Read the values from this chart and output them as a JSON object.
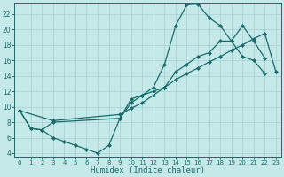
{
  "xlabel": "Humidex (Indice chaleur)",
  "xlim": [
    -0.5,
    23.5
  ],
  "ylim": [
    3.5,
    23.5
  ],
  "xticks": [
    0,
    1,
    2,
    3,
    4,
    5,
    6,
    7,
    8,
    9,
    10,
    11,
    12,
    13,
    14,
    15,
    16,
    17,
    18,
    19,
    20,
    21,
    22,
    23
  ],
  "yticks": [
    4,
    6,
    8,
    10,
    12,
    14,
    16,
    18,
    20,
    22
  ],
  "bg_color": "#c5e8e8",
  "line_color": "#1a6b6b",
  "grid_color": "#a8d0d0",
  "curve1_x": [
    0,
    1,
    2,
    3,
    4,
    5,
    6,
    7,
    8,
    9,
    10,
    11,
    12,
    13,
    14,
    15,
    16,
    17,
    18,
    19,
    20,
    21,
    22
  ],
  "curve1_y": [
    9.5,
    7.2,
    7.0,
    6.0,
    5.5,
    5.0,
    4.5,
    4.0,
    5.0,
    8.5,
    11.0,
    11.5,
    12.5,
    15.5,
    20.5,
    23.2,
    23.3,
    21.5,
    20.5,
    18.5,
    16.5,
    16.0,
    14.3
  ],
  "curve2_x": [
    0,
    1,
    2,
    3,
    9,
    10,
    11,
    12,
    13,
    14,
    15,
    16,
    17,
    18,
    19,
    20,
    21,
    22
  ],
  "curve2_y": [
    9.5,
    7.2,
    7.0,
    8.0,
    8.5,
    10.5,
    11.5,
    12.0,
    12.5,
    14.5,
    15.5,
    16.5,
    17.0,
    18.5,
    18.5,
    20.5,
    18.5,
    16.3
  ],
  "curve3_x": [
    0,
    3,
    9,
    10,
    11,
    12,
    13,
    14,
    15,
    16,
    17,
    18,
    19,
    20,
    21,
    22,
    23
  ],
  "curve3_y": [
    9.5,
    8.2,
    9.0,
    9.8,
    10.5,
    11.5,
    12.5,
    13.5,
    14.3,
    15.0,
    15.8,
    16.5,
    17.3,
    18.0,
    18.8,
    19.5,
    14.5
  ]
}
